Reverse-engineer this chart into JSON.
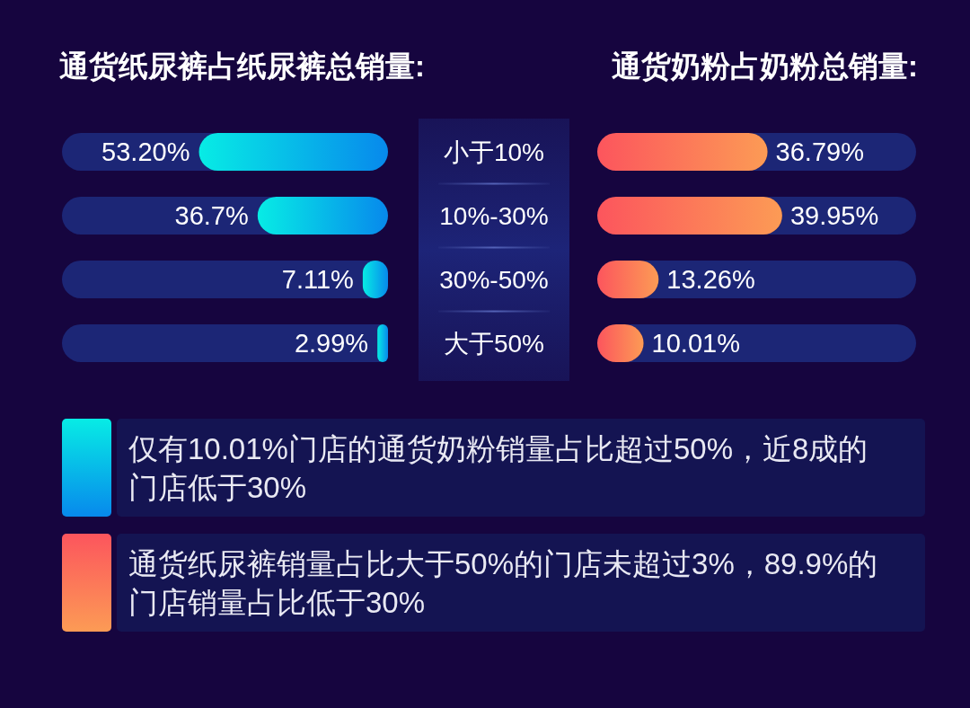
{
  "chart_data": [
    {
      "type": "bar",
      "orientation": "horizontal",
      "title": "通货纸尿裤占纸尿裤总销量:",
      "categories": [
        "小于10%",
        "10%-30%",
        "30%-50%",
        "大于50%"
      ],
      "values": [
        53.2,
        36.7,
        7.11,
        2.99
      ],
      "value_labels": [
        "53.20%",
        "36.7%",
        "7.11%",
        "2.99%"
      ],
      "color": "#07beec"
    },
    {
      "type": "bar",
      "orientation": "horizontal",
      "title": "通货奶粉占奶粉总销量:",
      "categories": [
        "小于10%",
        "10%-30%",
        "30%-50%",
        "大于50%"
      ],
      "values": [
        36.79,
        39.95,
        13.26,
        10.01
      ],
      "value_labels": [
        "36.79%",
        "39.95%",
        "13.26%",
        "10.01%"
      ],
      "color": "#fc7455",
      "tick_labels": false
    },
    {
      "type": "other",
      "annotations": [
        "仅有10.01%门店的通货奶粉销量占比超过50%，近8成的门店低于30%",
        "通货纸尿裤销量占比大于50%的门店未超过3%，89.9%的门店销量占比低于30%"
      ]
    }
  ]
}
